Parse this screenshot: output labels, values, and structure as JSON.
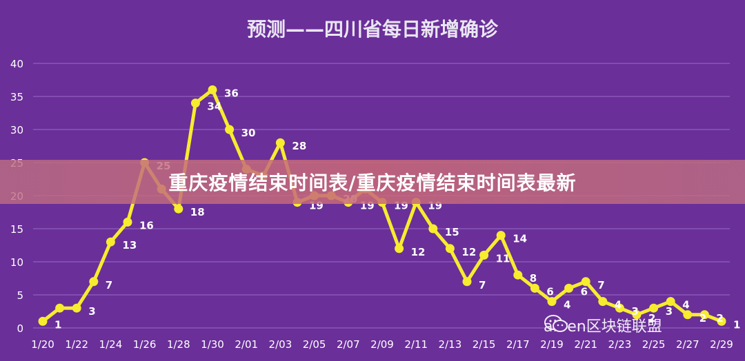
{
  "banner": {
    "text": "重庆疫情结束时间表/重庆疫情结束时间表最新"
  },
  "watermark": {
    "text": "aliren区块链联盟",
    "icon": "wechat-icon"
  },
  "colors": {
    "background": "#6a2f99",
    "line": "#f7ec2e",
    "marker_fill": "#f7ec2e",
    "text": "#ffffff",
    "grid": "#9b6cc6"
  },
  "chart_data": {
    "type": "line",
    "title": "预测——四川省每日新增确诊",
    "xlabel": "",
    "ylabel": "",
    "ylim": [
      0,
      40
    ],
    "yticks": [
      0,
      5,
      10,
      15,
      20,
      25,
      30,
      35,
      40
    ],
    "grid": true,
    "x": [
      "1/20",
      "1/21",
      "1/22",
      "1/23",
      "1/24",
      "1/25",
      "1/26",
      "1/27",
      "1/28",
      "1/29",
      "1/30",
      "1/31",
      "2/01",
      "2/02",
      "2/03",
      "2/04",
      "2/05",
      "2/06",
      "2/07",
      "2/08",
      "2/09",
      "2/10",
      "2/11",
      "2/12",
      "2/13",
      "2/14",
      "2/15",
      "2/16",
      "2/17",
      "2/18",
      "2/19",
      "2/20",
      "2/21",
      "2/22",
      "2/23",
      "2/24",
      "2/25",
      "2/26",
      "2/27",
      "2/28",
      "2/29"
    ],
    "x_tick_labels": [
      "1/20",
      "1/22",
      "1/24",
      "1/26",
      "1/28",
      "1/30",
      "2/01",
      "2/03",
      "2/05",
      "2/07",
      "2/09",
      "2/11",
      "2/13",
      "2/15",
      "2/17",
      "2/19",
      "2/21",
      "2/23",
      "2/25",
      "2/27",
      "2/29"
    ],
    "series": [
      {
        "values": [
          1,
          3,
          3,
          7,
          13,
          16,
          25,
          21,
          18,
          34,
          36,
          30,
          24,
          23,
          28,
          19,
          20,
          20,
          19,
          21,
          19,
          12,
          19,
          15,
          12,
          7,
          11,
          14,
          8,
          6,
          4,
          6,
          7,
          4,
          3,
          2,
          3,
          4,
          2,
          2,
          1
        ]
      }
    ],
    "data_labels": [
      "1",
      "",
      "3",
      "7",
      "13",
      "16",
      "25",
      "",
      "18",
      "34",
      "36",
      "30",
      "",
      "",
      "28",
      "19",
      "",
      "20",
      "19",
      "",
      "19",
      "12",
      "19",
      "15",
      "12",
      "7",
      "11",
      "14",
      "8",
      "6",
      "4",
      "6",
      "7",
      "4",
      "3",
      "2",
      "3",
      "4",
      "2",
      "2",
      "1"
    ]
  }
}
